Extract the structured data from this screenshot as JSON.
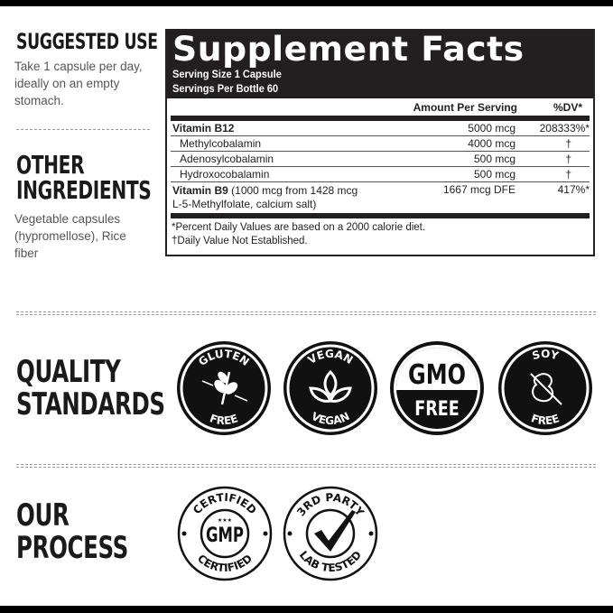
{
  "suggested_use": {
    "heading": "SUGGESTED USE",
    "text": "Take 1 capsule per day, ideally on an empty stomach."
  },
  "other_ingredients": {
    "heading_line1": "OTHER",
    "heading_line2": "INGREDIENTS",
    "text": "Vegetable capsules (hypromellose), Rice fiber"
  },
  "supplement_facts": {
    "title": "Supplement Facts",
    "serving_size": "Serving Size 1 Capsule",
    "servings_per": "Servings Per Bottle 60",
    "col_amount": "Amount Per Serving",
    "col_dv": "%DV*",
    "rows": [
      {
        "name": "Vitamin B12",
        "amount": "5000 mcg",
        "dv": "208333%*"
      },
      {
        "name": "Methylcobalamin",
        "amount": "4000 mcg",
        "dv": "†"
      },
      {
        "name": "Adenosylcobalamin",
        "amount": "500 mcg",
        "dv": "†"
      },
      {
        "name": "Hydroxocobalamin",
        "amount": "500 mcg",
        "dv": "†"
      },
      {
        "name": "Vitamin B9",
        "detail": "(1000 mcg from 1428 mcg",
        "detail2": "L-5-Methylfolate, calcium salt)",
        "amount": "1667 mcg DFE",
        "dv": "417%*"
      }
    ],
    "footnote1": "*Percent Daily Values are based on a 2000 calorie diet.",
    "footnote2": "†Daily Value Not Established."
  },
  "quality": {
    "heading_line1": "QUALITY",
    "heading_line2": "STANDARDS",
    "badges": [
      {
        "top": "GLUTEN",
        "bottom": "FREE",
        "icon": "wheat-crossed-icon"
      },
      {
        "top": "VEGAN",
        "bottom": "VEGAN",
        "icon": "leaf-icon"
      },
      {
        "top": "GMO",
        "bottom": "FREE",
        "icon": "gmo-text"
      },
      {
        "top": "SOY",
        "bottom": "FREE",
        "icon": "soy-crossed-icon"
      }
    ]
  },
  "process": {
    "heading_line1": "OUR",
    "heading_line2": "PROCESS",
    "badges": [
      {
        "top": "CERTIFIED",
        "center": "GMP",
        "bottom": "CERTIFIED"
      },
      {
        "top": "3RD PARTY",
        "bottom": "LAB TESTED",
        "icon": "checkmark-icon"
      }
    ]
  }
}
